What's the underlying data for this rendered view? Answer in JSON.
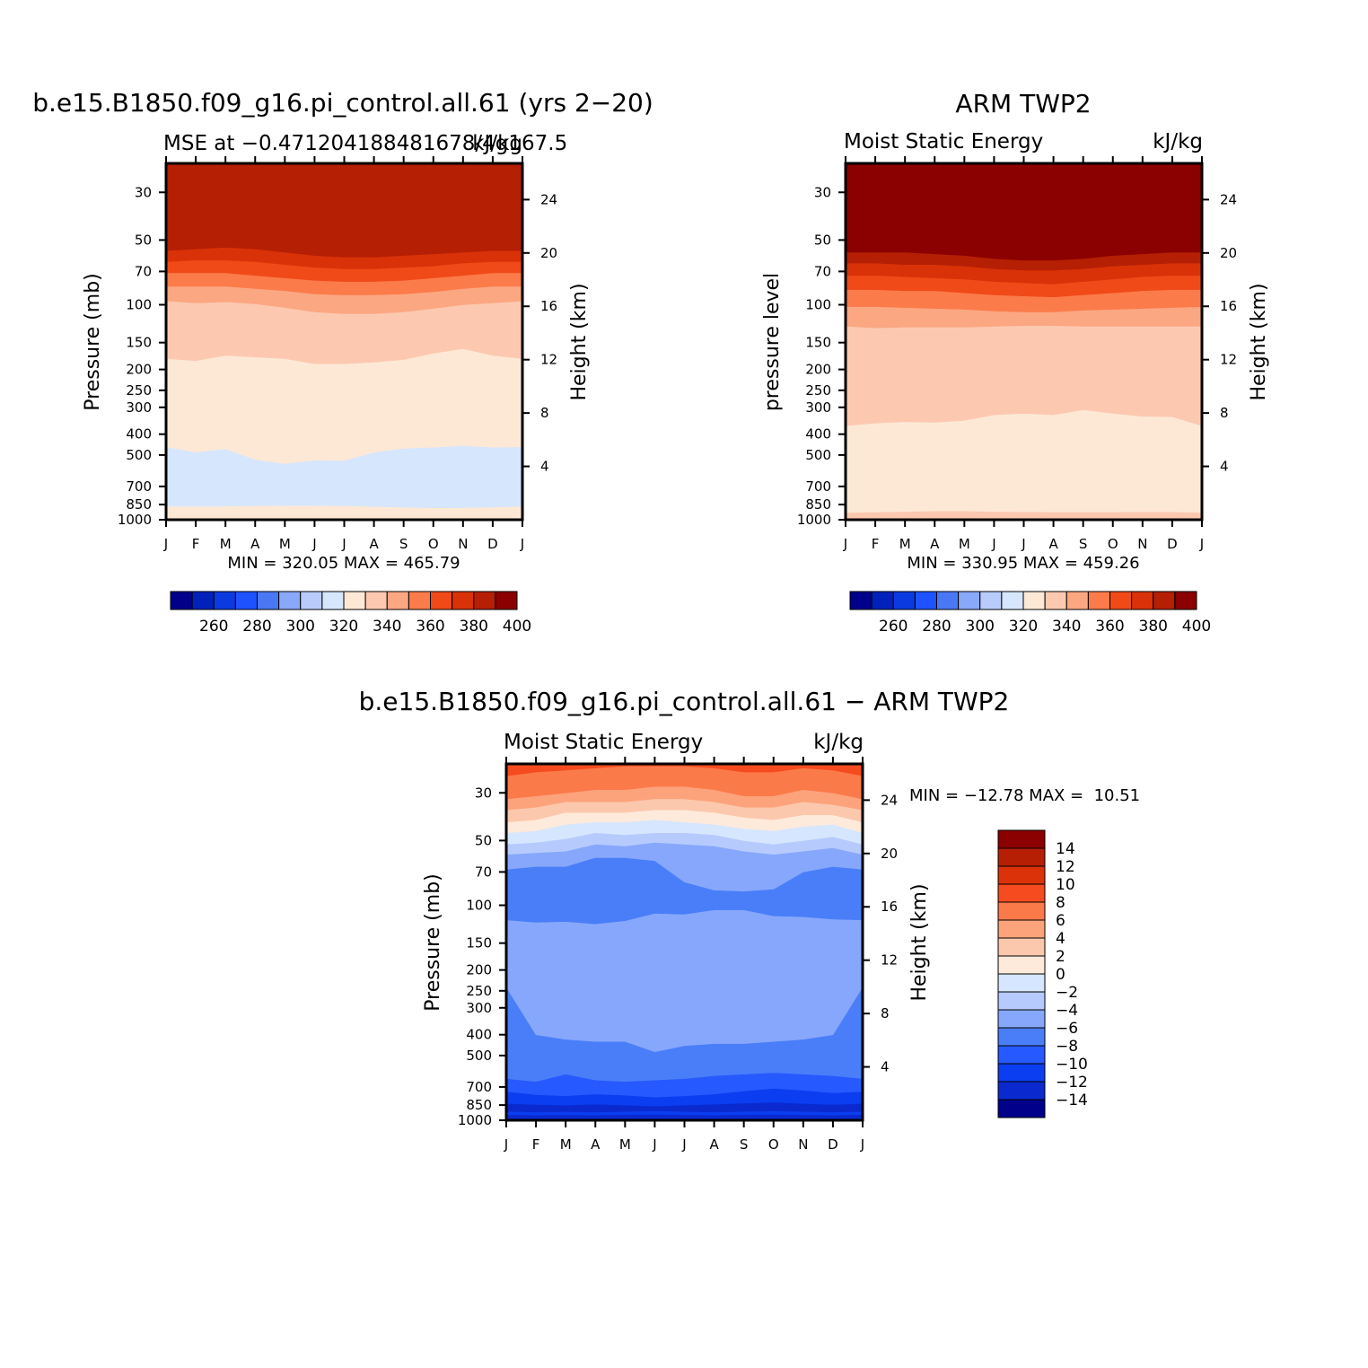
{
  "palette_abs": [
    "#00008b",
    "#0022bb",
    "#0a3ae0",
    "#1e52ff",
    "#4a78f5",
    "#8aa8f8",
    "#b8cbfb",
    "#d6e6fd",
    "#fde8d6",
    "#fcc9b0",
    "#fba782",
    "#fb7b4a",
    "#f04a18",
    "#d93208",
    "#b51f04",
    "#8b0000"
  ],
  "palette_diff": [
    "#00008b",
    "#0a2ad0",
    "#0b3ef0",
    "#2659ff",
    "#4a7ef8",
    "#86a7fb",
    "#b6cafd",
    "#d6e6fe",
    "#fdeadb",
    "#fcc8ad",
    "#fca37c",
    "#fb7a4a",
    "#f64b1e",
    "#dc320a",
    "#b71f04",
    "#8b0000"
  ],
  "chart_data": [
    {
      "type": "heatmap",
      "title": "b.e15.B1850.f09_g16.pi_control.all.61 (yrs 2−20)",
      "subtitle_left": "MSE at −0.471204188481678/4g167.5",
      "subtitle_right": "kJ/kg",
      "ylabel": "Pressure (mb)",
      "ylabel_right": "Height (km)",
      "x_ticks": [
        "J",
        "F",
        "M",
        "A",
        "M",
        "J",
        "J",
        "A",
        "S",
        "O",
        "N",
        "D",
        "J"
      ],
      "y_ticks": [
        30,
        50,
        70,
        100,
        150,
        200,
        250,
        300,
        400,
        500,
        700,
        850,
        1000
      ],
      "y_ticks_right": [
        24,
        20,
        16,
        12,
        8,
        4
      ],
      "y_scale": "log-pressure",
      "ylim_mb": [
        1000,
        22
      ],
      "min_max_text": "MIN = 320.05 MAX = 465.79",
      "contour_boundaries_mb": [
        [
          865,
          865,
          865,
          860,
          858,
          858,
          860,
          868,
          875,
          880,
          878,
          872,
          865
        ],
        [
          458,
          485,
          468,
          525,
          548,
          528,
          530,
          485,
          465,
          460,
          452,
          460,
          458
        ],
        [
          178,
          182,
          172,
          175,
          178,
          188,
          188,
          185,
          180,
          168,
          160,
          172,
          178
        ],
        [
          96,
          98,
          97,
          99,
          103,
          108,
          110,
          110,
          108,
          104,
          100,
          98,
          96
        ],
        [
          82,
          82,
          82,
          84,
          86,
          89,
          90,
          90,
          89,
          87,
          84,
          82,
          82
        ],
        [
          71,
          71,
          71,
          73,
          75,
          77,
          78,
          78,
          77,
          75,
          73,
          71,
          71
        ],
        [
          63,
          62,
          62,
          63,
          65,
          67,
          68,
          68,
          67,
          66,
          64,
          63,
          63
        ],
        [
          56,
          55,
          54,
          55,
          57,
          59,
          60,
          60,
          59,
          58,
          57,
          56,
          56
        ]
      ],
      "band_colorbar_index": [
        8,
        7,
        8,
        9,
        10,
        11,
        12,
        13,
        14,
        15
      ]
    },
    {
      "type": "heatmap",
      "title": "ARM TWP2",
      "subtitle_left": "Moist Static Energy",
      "subtitle_right": "kJ/kg",
      "ylabel": "pressure level",
      "ylabel_right": "Height (km)",
      "x_ticks": [
        "J",
        "F",
        "M",
        "A",
        "M",
        "J",
        "J",
        "A",
        "S",
        "O",
        "N",
        "D",
        "J"
      ],
      "y_ticks": [
        30,
        50,
        70,
        100,
        150,
        200,
        250,
        300,
        400,
        500,
        700,
        850,
        1000
      ],
      "y_ticks_right": [
        24,
        20,
        16,
        12,
        8,
        4
      ],
      "y_scale": "log-pressure",
      "ylim_mb": [
        1000,
        22
      ],
      "min_max_text": "MIN = 330.95 MAX = 459.26",
      "contour_boundaries_mb": [
        [
          925,
          920,
          915,
          910,
          910,
          915,
          918,
          920,
          920,
          920,
          918,
          918,
          925
        ],
        [
          365,
          355,
          350,
          352,
          345,
          325,
          320,
          325,
          308,
          320,
          330,
          332,
          365
        ],
        [
          126,
          128,
          127,
          127,
          127,
          126,
          125,
          125,
          126,
          126,
          126,
          126,
          126
        ],
        [
          102,
          102,
          103,
          104,
          105,
          107,
          108,
          108,
          106,
          105,
          104,
          103,
          102
        ],
        [
          85,
          85,
          86,
          86,
          88,
          90,
          91,
          92,
          90,
          88,
          86,
          85,
          85
        ],
        [
          73,
          73,
          74,
          75,
          76,
          78,
          79,
          80,
          78,
          76,
          74,
          73,
          73
        ],
        [
          64,
          64,
          65,
          65,
          66,
          68,
          69,
          69,
          68,
          66,
          65,
          64,
          64
        ],
        [
          57,
          57,
          57,
          58,
          59,
          61,
          62,
          62,
          61,
          59,
          58,
          57,
          57
        ]
      ],
      "band_colorbar_index": [
        9,
        8,
        9,
        10,
        11,
        12,
        13,
        14,
        15
      ]
    },
    {
      "type": "heatmap",
      "title": "b.e15.B1850.f09_g16.pi_control.all.61 − ARM TWP2",
      "subtitle_left": "Moist Static Energy",
      "subtitle_right": "kJ/kg",
      "ylabel": "Pressure (mb)",
      "ylabel_right": "Height (km)",
      "x_ticks": [
        "J",
        "F",
        "M",
        "A",
        "M",
        "J",
        "J",
        "A",
        "S",
        "O",
        "N",
        "D",
        "J"
      ],
      "y_ticks": [
        30,
        50,
        70,
        100,
        150,
        200,
        250,
        300,
        400,
        500,
        700,
        850,
        1000
      ],
      "y_ticks_right": [
        24,
        20,
        16,
        12,
        8,
        4
      ],
      "y_scale": "log-pressure",
      "ylim_mb": [
        1000,
        22
      ],
      "min_max_text": "MIN = −12.78 MAX =  10.51",
      "contour_boundaries_mb": [
        [
          940,
          945,
          942,
          945,
          940,
          938,
          942,
          945,
          940,
          938,
          942,
          945,
          940
        ],
        [
          910,
          915,
          912,
          915,
          910,
          905,
          910,
          915,
          910,
          905,
          910,
          915,
          910
        ],
        [
          835,
          845,
          850,
          842,
          850,
          858,
          850,
          842,
          832,
          825,
          835,
          845,
          835
        ],
        [
          735,
          760,
          770,
          755,
          765,
          780,
          770,
          755,
          730,
          710,
          725,
          745,
          735
        ],
        [
          640,
          660,
          610,
          650,
          660,
          650,
          640,
          620,
          610,
          600,
          610,
          620,
          640
        ],
        [
          240,
          400,
          420,
          430,
          430,
          480,
          450,
          440,
          440,
          430,
          420,
          400,
          240
        ],
        [
          117,
          120,
          119,
          122,
          118,
          109,
          110,
          105,
          105,
          112,
          113,
          116,
          117
        ],
        [
          68,
          66,
          66,
          60,
          60,
          62,
          78,
          85,
          86,
          84,
          70,
          66,
          68
        ],
        [
          58,
          57,
          56,
          52,
          53,
          51,
          52,
          53,
          56,
          58,
          56,
          54,
          58
        ],
        [
          52,
          51,
          49,
          46,
          47,
          46,
          46,
          47,
          50,
          52,
          50,
          48,
          52
        ],
        [
          46,
          45,
          42,
          41,
          41,
          40,
          41,
          42,
          44,
          45,
          43,
          42,
          46
        ],
        [
          41,
          40,
          37,
          37,
          37,
          36,
          36,
          37,
          39,
          40,
          38,
          38,
          41
        ],
        [
          36,
          35,
          33,
          33,
          33,
          32,
          32,
          33,
          35,
          35,
          33,
          34,
          36
        ],
        [
          32,
          31,
          30,
          29,
          29,
          28,
          28,
          29,
          31,
          31,
          29,
          30,
          32
        ],
        [
          28,
          27,
          26,
          25.5,
          25,
          25,
          25,
          26,
          27,
          27,
          26,
          26,
          28
        ],
        [
          25,
          24,
          23.5,
          23,
          22.5,
          22.5,
          22.5,
          23,
          24,
          24,
          23,
          23.5,
          25
        ]
      ],
      "band_colorbar_index": [
        1,
        2,
        1,
        2,
        3,
        4,
        5,
        4,
        5,
        6,
        7,
        8,
        9,
        10,
        11,
        11,
        12
      ]
    }
  ],
  "colorbar_abs": {
    "labels": [
      "260",
      "280",
      "300",
      "320",
      "340",
      "360",
      "380",
      "400"
    ]
  },
  "colorbar_diff": {
    "labels": [
      "14",
      "12",
      "10",
      "8",
      "6",
      "4",
      "2",
      "0",
      "−2",
      "−4",
      "−6",
      "−8",
      "−10",
      "−12",
      "−14"
    ]
  }
}
